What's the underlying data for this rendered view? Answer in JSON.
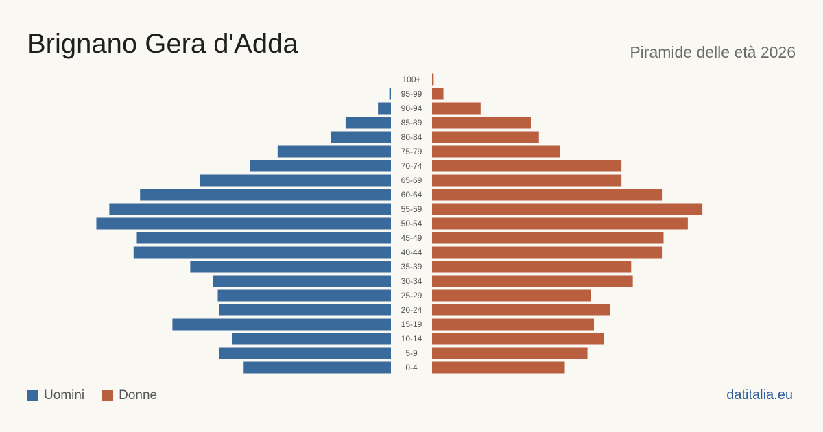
{
  "header": {
    "title": "Brignano Gera d'Adda",
    "subtitle": "Piramide delle età 2026"
  },
  "legend": {
    "men_label": "Uomini",
    "women_label": "Donne"
  },
  "footer": {
    "source": "datitalia.eu"
  },
  "colors": {
    "men": "#3a6a9b",
    "women": "#b95e3e",
    "tick_label": "#555555"
  },
  "chart_data": {
    "type": "bar",
    "orientation": "horizontal-pyramid",
    "categories": [
      "100+",
      "95-99",
      "90-94",
      "85-89",
      "80-84",
      "75-79",
      "70-74",
      "65-69",
      "60-64",
      "55-59",
      "50-54",
      "45-49",
      "40-44",
      "35-39",
      "30-34",
      "25-29",
      "20-24",
      "15-19",
      "10-14",
      "5-9",
      "0-4"
    ],
    "series": [
      {
        "name": "Uomini",
        "values": [
          0,
          1,
          8,
          28,
          37,
          70,
          87,
          118,
          155,
          174,
          182,
          157,
          159,
          124,
          110,
          107,
          106,
          135,
          98,
          106,
          91
        ]
      },
      {
        "name": "Donne",
        "values": [
          1,
          7,
          30,
          61,
          66,
          79,
          117,
          117,
          142,
          167,
          158,
          143,
          142,
          123,
          124,
          98,
          110,
          100,
          106,
          96,
          82
        ]
      }
    ],
    "legend_position": "bottom-left",
    "grid": false
  }
}
